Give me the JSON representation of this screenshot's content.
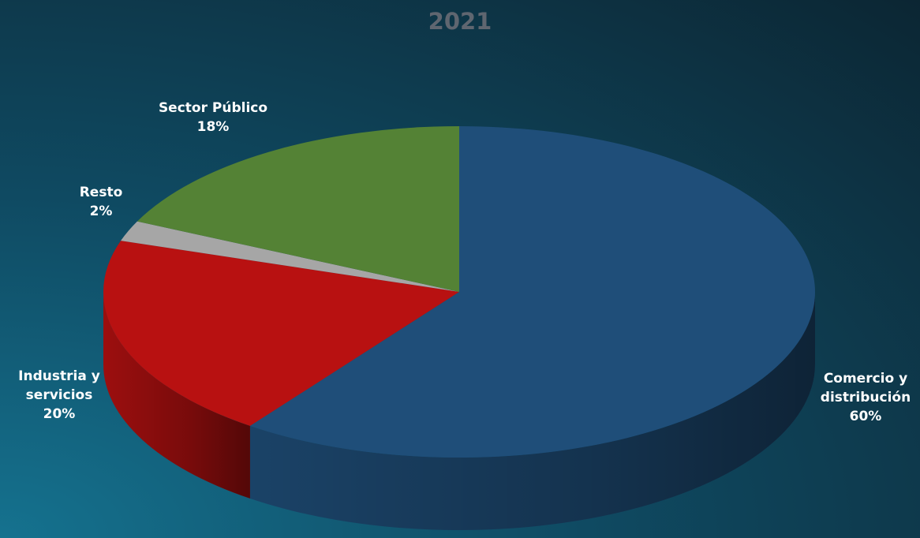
{
  "chart_data": {
    "type": "pie",
    "title": "2021",
    "categories": [
      "Comercio y distribución",
      "Industria y servicios",
      "Resto",
      "Sector Público"
    ],
    "values": [
      60,
      20,
      2,
      18
    ],
    "value_labels": [
      "60%",
      "20%",
      "2%",
      "18%"
    ],
    "colors": [
      "#1f4e79",
      "#b81111",
      "#a6a6a6",
      "#548235"
    ]
  }
}
